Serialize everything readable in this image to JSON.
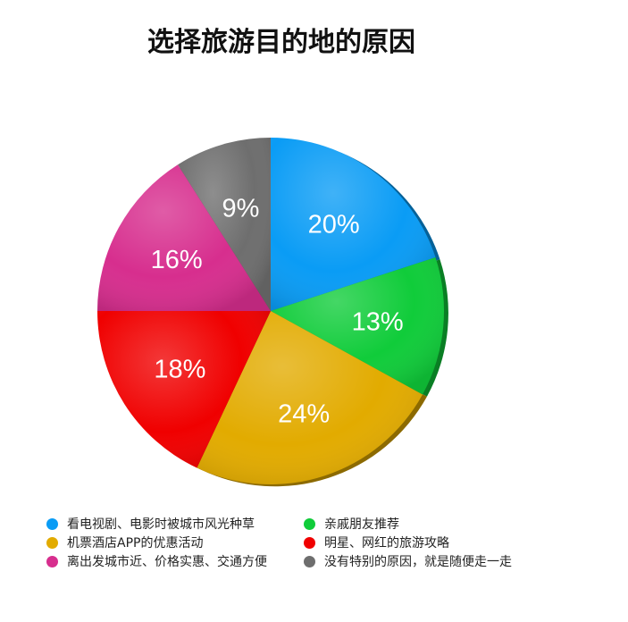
{
  "chart_data": {
    "type": "pie",
    "title": "选择旅游目的地的原因",
    "slices": [
      {
        "label": "看电视剧、电影时被城市风光种草",
        "value": 20,
        "display": "20%",
        "color": "#0a9cf5"
      },
      {
        "label": "亲戚朋友推荐",
        "value": 13,
        "display": "13%",
        "color": "#10cc3a"
      },
      {
        "label": "机票酒店APP的优惠活动",
        "value": 24,
        "display": "24%",
        "color": "#e2ab00"
      },
      {
        "label": "明星、网红的旅游攻略",
        "value": 18,
        "display": "18%",
        "color": "#f00000"
      },
      {
        "label": "离出发城市近、价格实惠、交通方便",
        "value": 16,
        "display": "16%",
        "color": "#d72e8e"
      },
      {
        "label": "没有特别的原因，就是随便走一走",
        "value": 9,
        "display": "9%",
        "color": "#6e6e6e"
      }
    ],
    "legend_order": [
      0,
      2,
      4,
      1,
      3,
      5
    ],
    "legend_placement": "bottom"
  }
}
